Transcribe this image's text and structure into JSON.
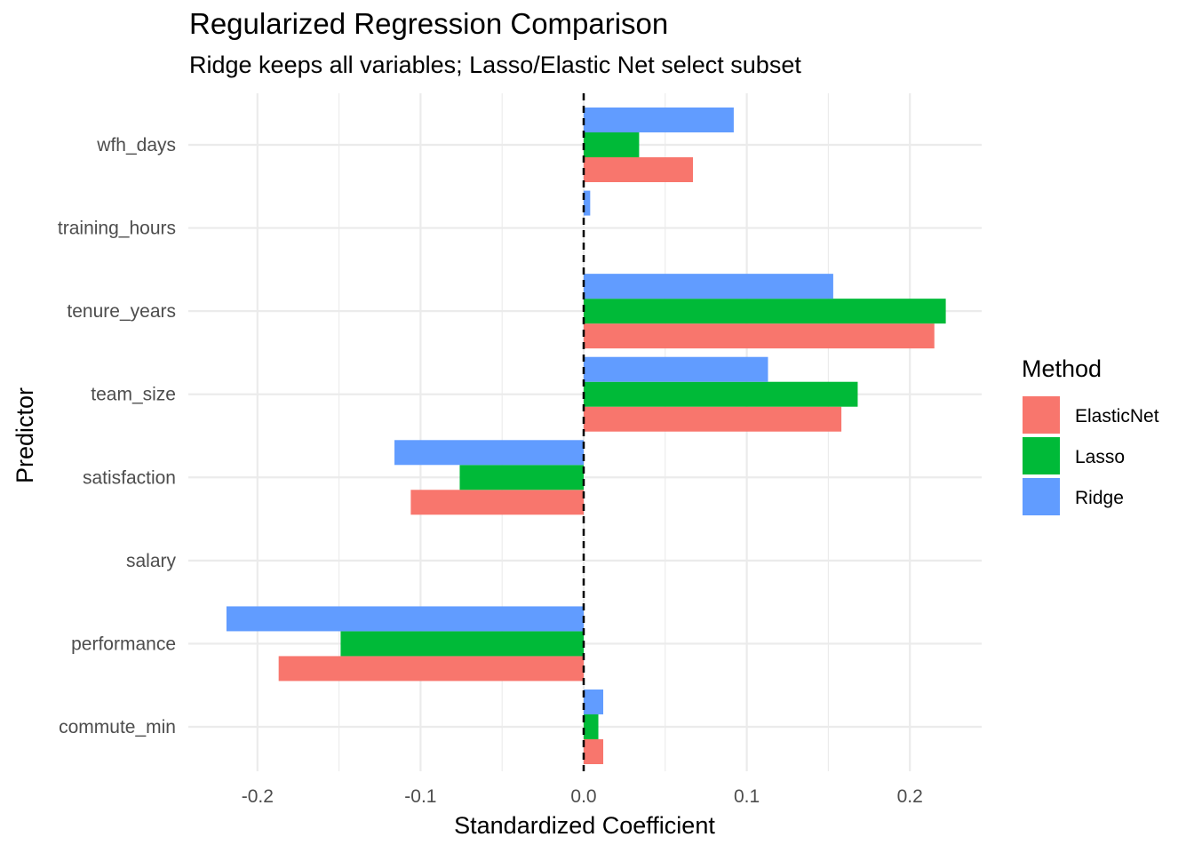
{
  "chart_data": {
    "type": "bar",
    "orientation": "horizontal",
    "title": "Regularized Regression Comparison",
    "subtitle": "Ridge keeps all variables; Lasso/Elastic Net select subset",
    "xlabel": "Standardized Coefficient",
    "ylabel": "Predictor",
    "xlim": [
      -0.24,
      0.245
    ],
    "x_ticks": [
      -0.2,
      -0.1,
      0.0,
      0.1,
      0.2
    ],
    "x_tick_labels": [
      "-0.2",
      "-0.1",
      "0.0",
      "0.1",
      "0.2"
    ],
    "categories": [
      "commute_min",
      "performance",
      "salary",
      "satisfaction",
      "team_size",
      "tenure_years",
      "training_hours",
      "wfh_days"
    ],
    "series": [
      {
        "name": "ElasticNet",
        "color": "#F8766D",
        "values": [
          0.012,
          -0.187,
          0.0,
          -0.106,
          0.158,
          0.215,
          0.0,
          0.067
        ]
      },
      {
        "name": "Lasso",
        "color": "#00BA38",
        "values": [
          0.009,
          -0.149,
          0.0,
          -0.076,
          0.168,
          0.222,
          0.0,
          0.034
        ]
      },
      {
        "name": "Ridge",
        "color": "#619CFF",
        "values": [
          0.012,
          -0.219,
          0.0,
          -0.116,
          0.113,
          0.153,
          0.004,
          0.092
        ]
      }
    ],
    "reference_line": {
      "x": 0,
      "style": "dashed"
    },
    "grid": true,
    "legend": {
      "title": "Method",
      "position": "right"
    }
  }
}
